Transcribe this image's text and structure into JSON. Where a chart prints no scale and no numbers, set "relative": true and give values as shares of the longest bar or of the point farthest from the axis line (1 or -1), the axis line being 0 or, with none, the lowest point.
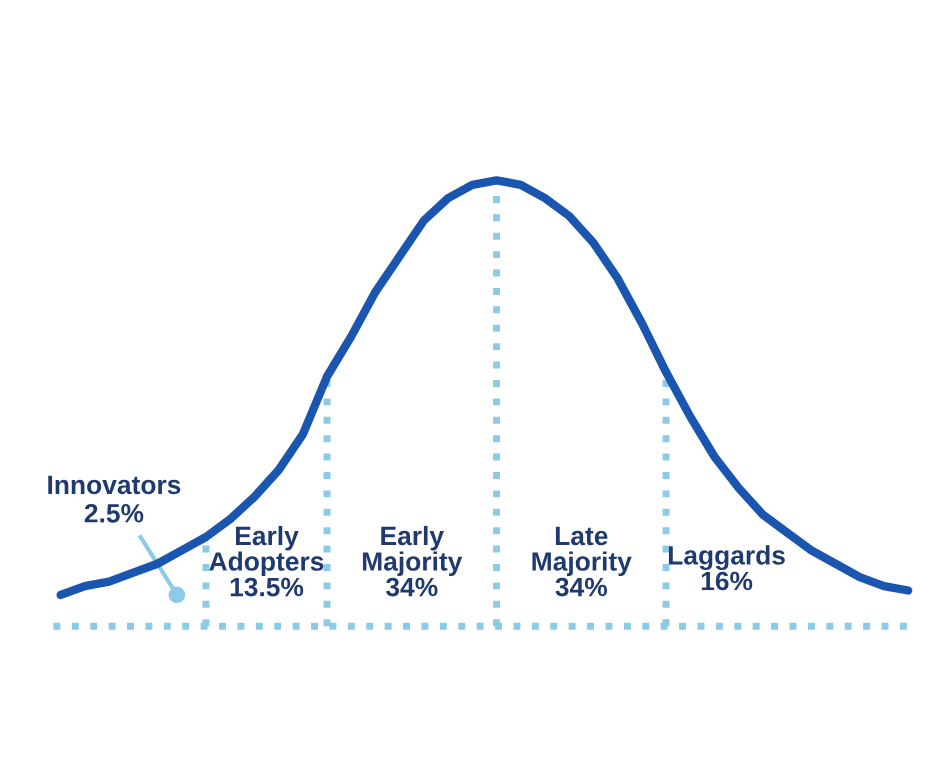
{
  "chart_data": {
    "type": "line",
    "relative": true,
    "legend": false,
    "categories": [
      null,
      null,
      null,
      null,
      null,
      null,
      null,
      null,
      null,
      null,
      null,
      null,
      null,
      null,
      null,
      null,
      null,
      null,
      null,
      null,
      null,
      null,
      null,
      null,
      null,
      null,
      null,
      null,
      null,
      null,
      null,
      null,
      null,
      null,
      null,
      null
    ],
    "series": [
      {
        "color": "#1a56b0",
        "values": [
          0.07,
          0.09,
          0.1,
          0.12,
          0.14,
          0.17,
          0.2,
          0.24,
          0.29,
          0.35,
          0.43,
          0.56,
          0.65,
          0.75,
          0.83,
          0.91,
          0.96,
          0.99,
          1,
          0.99,
          0.96,
          0.92,
          0.86,
          0.78,
          0.68,
          0.57,
          0.47,
          0.38,
          0.31,
          0.25,
          0.21,
          0.17,
          0.14,
          0.11,
          0.09,
          0.08
        ]
      }
    ],
    "annotations": [
      "Innovators\n2.5%",
      "Early\nAdopters\n13.5%",
      "Early\nMajority\n34%",
      "Late\nMajority\n34%",
      "Laggards\n16%"
    ]
  }
}
